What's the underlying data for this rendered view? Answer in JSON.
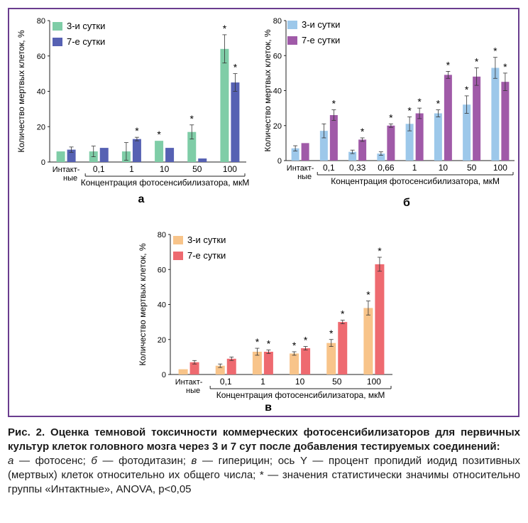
{
  "chart_data": [
    {
      "type": "bar",
      "panel_label": "а",
      "ylabel": "Количество мертвых клеток, %",
      "xlabel": "Концентрация фотосенсибилизатора, мкМ",
      "ylim": [
        0,
        80
      ],
      "yticks": [
        "0",
        "20",
        "40",
        "60",
        "80"
      ],
      "categories": [
        "Интакт-\nные",
        "0,1",
        "1",
        "10",
        "50",
        "100"
      ],
      "legend": "top-left",
      "series": [
        {
          "name": "3-и сутки",
          "color": "#7fcda7",
          "values": [
            6,
            6,
            6,
            12,
            17,
            64
          ],
          "errors": [
            0,
            3,
            5,
            0,
            4,
            8
          ],
          "sig": [
            false,
            false,
            false,
            true,
            true,
            true
          ]
        },
        {
          "name": "7-е сутки",
          "color": "#5661b3",
          "values": [
            7,
            8,
            13,
            8,
            2,
            45
          ],
          "errors": [
            1.5,
            0,
            1,
            0,
            0,
            5
          ],
          "sig": [
            false,
            false,
            true,
            false,
            false,
            true
          ]
        }
      ]
    },
    {
      "type": "bar",
      "panel_label": "б",
      "ylabel": "Количество мертвых клеток, %",
      "xlabel": "Концентрация фотосенсибилизатора, мкМ",
      "ylim": [
        0,
        80
      ],
      "yticks": [
        "0",
        "20",
        "40",
        "60",
        "80"
      ],
      "categories": [
        "Интакт-\nные",
        "0,1",
        "0,33",
        "0,66",
        "1",
        "10",
        "50",
        "100"
      ],
      "legend": "top-left",
      "series": [
        {
          "name": "3-и сутки",
          "color": "#9dc8ea",
          "values": [
            7,
            17,
            5,
            4,
            21,
            27,
            32,
            53
          ],
          "errors": [
            1.5,
            4,
            1,
            1,
            4,
            2,
            5,
            6
          ],
          "sig": [
            false,
            false,
            false,
            false,
            true,
            true,
            true,
            true
          ]
        },
        {
          "name": "7-е сутки",
          "color": "#a05aa8",
          "values": [
            10,
            26,
            12,
            20,
            27,
            49,
            48,
            45
          ],
          "errors": [
            0,
            3,
            1,
            1,
            3,
            2,
            5,
            5
          ],
          "sig": [
            false,
            true,
            true,
            true,
            true,
            true,
            true,
            true
          ]
        }
      ]
    },
    {
      "type": "bar",
      "panel_label": "в",
      "ylabel": "Количество мертвых клеток, %",
      "xlabel": "Концентрация фотосенсибилизатора, мкМ",
      "ylim": [
        0,
        80
      ],
      "yticks": [
        "0",
        "20",
        "40",
        "60",
        "80"
      ],
      "categories": [
        "Интакт-\nные",
        "0,1",
        "1",
        "10",
        "50",
        "100"
      ],
      "legend": "top-left",
      "series": [
        {
          "name": "3-и сутки",
          "color": "#f8c48a",
          "values": [
            3,
            5,
            13,
            12,
            18,
            38
          ],
          "errors": [
            0,
            1,
            2,
            1,
            2,
            4
          ],
          "sig": [
            false,
            false,
            true,
            true,
            true,
            true
          ]
        },
        {
          "name": "7-е сутки",
          "color": "#ee6a70",
          "values": [
            7,
            9,
            13,
            15,
            30,
            63
          ],
          "errors": [
            1,
            1,
            1,
            1,
            1,
            4
          ],
          "sig": [
            false,
            false,
            true,
            true,
            true,
            true
          ]
        }
      ]
    }
  ],
  "caption": {
    "title": "Рис. 2. Оценка темновой токсичности коммерческих фотосенсибилизаторов для первичных культур клеток головного мозга через 3 и 7 сут после добавления тестируемых соединений:",
    "a_label": "а",
    "a_text": " — фотосенс; ",
    "b_label": "б",
    "b_text": " — фотодитазин; ",
    "c_label": "в",
    "c_text": " — гиперицин; ось Y — процент пропидий иодид позитивных (мертвых) клеток относительно их общего числа; * — значения статистически значимы относительно группы «Интактные», ANOVA, p<0,05"
  }
}
